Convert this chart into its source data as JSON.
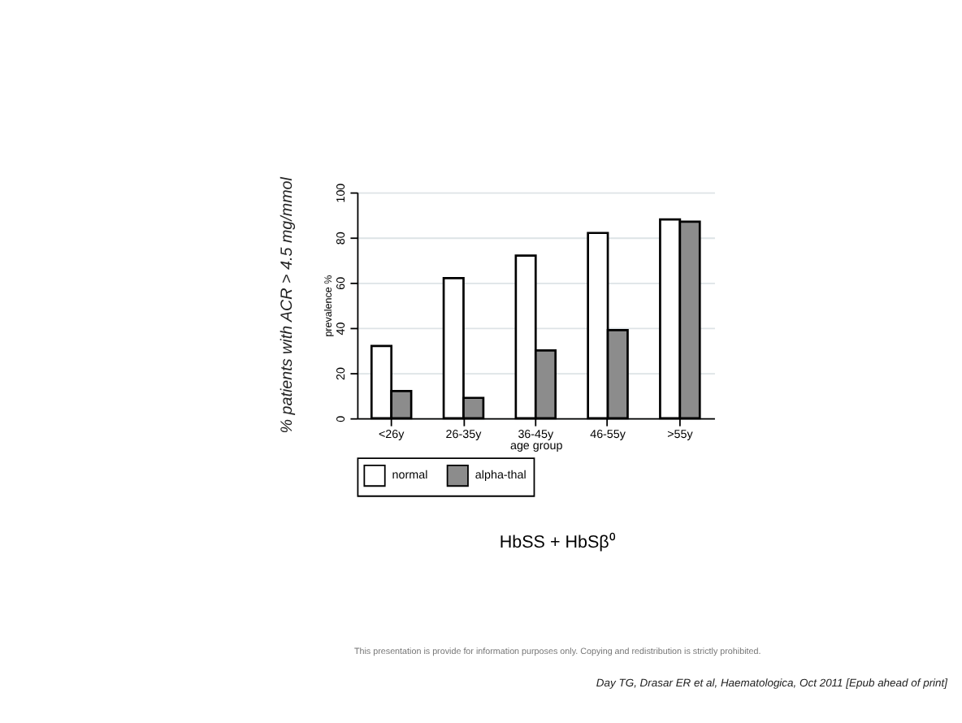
{
  "chart_data": {
    "type": "bar",
    "title": "HbSS + HbSβ⁰",
    "xlabel": "age group",
    "ylabel": "prevalence %",
    "categories": [
      "<26y",
      "26-35y",
      "36-45y",
      "46-55y",
      ">55y"
    ],
    "series": [
      {
        "name": "normal",
        "color": "#ffffff",
        "values": [
          32,
          62,
          72,
          82,
          88
        ]
      },
      {
        "name": "alpha-thal",
        "color": "#8c8c8c",
        "values": [
          12,
          9,
          30,
          39,
          87
        ]
      }
    ],
    "ylim": [
      0,
      100
    ],
    "yticks": [
      0,
      20,
      40,
      60,
      80,
      100
    ],
    "grid": "y",
    "legend": "bottom",
    "annotations": [
      "% patients with ACR > 4.5 mg/mmol",
      "This presentation is provide for information purposes only. Copying and redistribution is strictly prohibited.",
      "Day TG, Drasar ER et al, Haematologica, Oct 2011 [Epub ahead of print]"
    ]
  }
}
